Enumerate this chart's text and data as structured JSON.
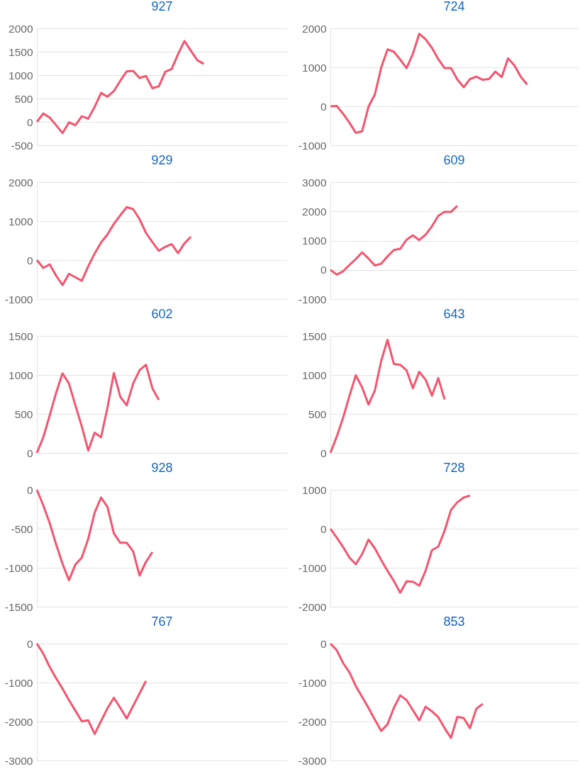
{
  "chart_data": [
    {
      "type": "line",
      "title": "927",
      "categories": [
        null,
        null,
        null,
        null,
        null,
        null,
        null,
        null,
        null,
        null,
        null,
        null,
        null,
        null,
        null,
        null,
        null,
        null,
        null,
        null,
        null,
        null,
        null,
        null,
        null,
        null,
        null,
        null,
        null,
        null,
        null,
        null,
        null,
        null,
        null,
        null,
        null,
        null,
        null,
        null
      ],
      "series": [
        {
          "color": "#f4546f",
          "values": [
            0,
            180,
            90,
            -70,
            -240,
            -10,
            -70,
            120,
            70,
            320,
            620,
            540,
            660,
            880,
            1080,
            1090,
            940,
            980,
            720,
            760,
            1070,
            1130,
            1450,
            1730,
            1520,
            1320,
            1240,
            null,
            null,
            null,
            null,
            null,
            null,
            null,
            null,
            null,
            null,
            null,
            null,
            null
          ]
        }
      ],
      "ylim": [
        -500,
        2000
      ],
      "yticks": [
        -500,
        0,
        500,
        1000,
        1500,
        2000
      ],
      "grid": "y",
      "tick_labels": "y"
    },
    {
      "type": "line",
      "title": "724",
      "categories": [
        null,
        null,
        null,
        null,
        null,
        null,
        null,
        null,
        null,
        null,
        null,
        null,
        null,
        null,
        null,
        null,
        null,
        null,
        null,
        null,
        null,
        null,
        null,
        null,
        null,
        null,
        null,
        null,
        null,
        null,
        null,
        null,
        null,
        null,
        null,
        null,
        null,
        null,
        null,
        null
      ],
      "series": [
        {
          "color": "#f4546f",
          "values": [
            0,
            10,
            -190,
            -420,
            -680,
            -640,
            -10,
            300,
            990,
            1460,
            1400,
            1200,
            980,
            1350,
            1860,
            1720,
            1500,
            1210,
            980,
            980,
            690,
            490,
            700,
            760,
            680,
            700,
            890,
            750,
            1230,
            1050,
            760,
            560,
            null,
            null,
            null,
            null,
            null,
            null,
            null,
            null
          ]
        }
      ],
      "ylim": [
        -1000,
        2000
      ],
      "yticks": [
        -1000,
        0,
        1000,
        2000
      ],
      "grid": "y",
      "tick_labels": "y"
    },
    {
      "type": "line",
      "title": "929",
      "categories": [
        null,
        null,
        null,
        null,
        null,
        null,
        null,
        null,
        null,
        null,
        null,
        null,
        null,
        null,
        null,
        null,
        null,
        null,
        null,
        null,
        null,
        null,
        null,
        null,
        null,
        null,
        null,
        null,
        null,
        null,
        null,
        null,
        null,
        null,
        null,
        null,
        null,
        null,
        null,
        null
      ],
      "series": [
        {
          "color": "#f4546f",
          "values": [
            0,
            -200,
            -110,
            -400,
            -640,
            -350,
            -440,
            -530,
            -160,
            170,
            450,
            660,
            930,
            1150,
            1360,
            1310,
            1050,
            700,
            460,
            240,
            340,
            410,
            180,
            430,
            600,
            null,
            null,
            null,
            null,
            null,
            null,
            null,
            null,
            null,
            null,
            null,
            null,
            null,
            null,
            null
          ]
        }
      ],
      "ylim": [
        -1000,
        2000
      ],
      "yticks": [
        -1000,
        0,
        1000,
        2000
      ],
      "grid": "y",
      "tick_labels": "y"
    },
    {
      "type": "line",
      "title": "609",
      "categories": [
        null,
        null,
        null,
        null,
        null,
        null,
        null,
        null,
        null,
        null,
        null,
        null,
        null,
        null,
        null,
        null,
        null,
        null,
        null,
        null,
        null,
        null,
        null,
        null,
        null,
        null,
        null,
        null,
        null,
        null,
        null,
        null,
        null,
        null,
        null,
        null,
        null,
        null,
        null,
        null
      ],
      "series": [
        {
          "color": "#f4546f",
          "values": [
            0,
            -160,
            -50,
            170,
            370,
            600,
            390,
            150,
            210,
            460,
            680,
            720,
            1030,
            1180,
            1020,
            1205,
            1490,
            1850,
            1990,
            1980,
            2190,
            null,
            null,
            null,
            null,
            null,
            null,
            null,
            null,
            null,
            null,
            null,
            null,
            null,
            null,
            null,
            null,
            null,
            null,
            null
          ]
        }
      ],
      "ylim": [
        -1000,
        3000
      ],
      "yticks": [
        -1000,
        0,
        1000,
        2000,
        3000
      ],
      "grid": "y",
      "tick_labels": "y"
    },
    {
      "type": "line",
      "title": "602",
      "categories": [
        null,
        null,
        null,
        null,
        null,
        null,
        null,
        null,
        null,
        null,
        null,
        null,
        null,
        null,
        null,
        null,
        null,
        null,
        null,
        null,
        null,
        null,
        null,
        null,
        null,
        null,
        null,
        null,
        null,
        null,
        null,
        null,
        null,
        null,
        null,
        null,
        null,
        null,
        null,
        null
      ],
      "series": [
        {
          "color": "#f4546f",
          "values": [
            0,
            200,
            480,
            770,
            1020,
            890,
            610,
            340,
            30,
            260,
            200,
            580,
            1025,
            720,
            610,
            890,
            1060,
            1130,
            830,
            680,
            null,
            null,
            null,
            null,
            null,
            null,
            null,
            null,
            null,
            null,
            null,
            null,
            null,
            null,
            null,
            null,
            null,
            null,
            null,
            null
          ]
        }
      ],
      "ylim": [
        0,
        1500
      ],
      "yticks": [
        0,
        500,
        1000,
        1500
      ],
      "grid": "y",
      "tick_labels": "y"
    },
    {
      "type": "line",
      "title": "643",
      "categories": [
        null,
        null,
        null,
        null,
        null,
        null,
        null,
        null,
        null,
        null,
        null,
        null,
        null,
        null,
        null,
        null,
        null,
        null,
        null,
        null,
        null,
        null,
        null,
        null,
        null,
        null,
        null,
        null,
        null,
        null,
        null,
        null,
        null,
        null,
        null,
        null,
        null,
        null,
        null,
        null
      ],
      "series": [
        {
          "color": "#f4546f",
          "values": [
            0,
            210,
            450,
            730,
            995,
            840,
            620,
            800,
            1180,
            1450,
            1140,
            1130,
            1060,
            830,
            1040,
            940,
            735,
            960,
            685,
            null,
            null,
            null,
            null,
            null,
            null,
            null,
            null,
            null,
            null,
            null,
            null,
            null,
            null,
            null,
            null,
            null,
            null,
            null,
            null,
            null
          ]
        }
      ],
      "ylim": [
        0,
        1500
      ],
      "yticks": [
        0,
        500,
        1000,
        1500
      ],
      "grid": "y",
      "tick_labels": "y"
    },
    {
      "type": "line",
      "title": "928",
      "categories": [
        null,
        null,
        null,
        null,
        null,
        null,
        null,
        null,
        null,
        null,
        null,
        null,
        null,
        null,
        null,
        null,
        null,
        null,
        null,
        null,
        null,
        null,
        null,
        null,
        null,
        null,
        null,
        null,
        null,
        null,
        null,
        null,
        null,
        null,
        null,
        null,
        null,
        null,
        null,
        null
      ],
      "series": [
        {
          "color": "#f4546f",
          "values": [
            0,
            -200,
            -430,
            -700,
            -950,
            -1160,
            -960,
            -870,
            -630,
            -295,
            -100,
            -220,
            -560,
            -680,
            -680,
            -790,
            -1100,
            -925,
            -800,
            null,
            null,
            null,
            null,
            null,
            null,
            null,
            null,
            null,
            null,
            null,
            null,
            null,
            null,
            null,
            null,
            null,
            null,
            null,
            null,
            null
          ]
        }
      ],
      "ylim": [
        -1500,
        0
      ],
      "yticks": [
        -1500,
        -1000,
        -500,
        0
      ],
      "grid": "y",
      "tick_labels": "y"
    },
    {
      "type": "line",
      "title": "728",
      "categories": [
        null,
        null,
        null,
        null,
        null,
        null,
        null,
        null,
        null,
        null,
        null,
        null,
        null,
        null,
        null,
        null,
        null,
        null,
        null,
        null,
        null,
        null,
        null,
        null,
        null,
        null,
        null,
        null,
        null,
        null,
        null,
        null,
        null,
        null,
        null,
        null,
        null,
        null,
        null,
        null
      ],
      "series": [
        {
          "color": "#f4546f",
          "values": [
            0,
            -230,
            -470,
            -740,
            -910,
            -650,
            -280,
            -500,
            -800,
            -1080,
            -1340,
            -1640,
            -1350,
            -1360,
            -1460,
            -1080,
            -550,
            -460,
            -50,
            480,
            680,
            800,
            850,
            null,
            null,
            null,
            null,
            null,
            null,
            null,
            null,
            null,
            null,
            null,
            null,
            null,
            null,
            null,
            null,
            null
          ]
        }
      ],
      "ylim": [
        -2000,
        1000
      ],
      "yticks": [
        -2000,
        -1000,
        0,
        1000
      ],
      "grid": "y",
      "tick_labels": "y"
    },
    {
      "type": "line",
      "title": "767",
      "categories": [
        null,
        null,
        null,
        null,
        null,
        null,
        null,
        null,
        null,
        null,
        null,
        null,
        null,
        null,
        null,
        null,
        null,
        null,
        null,
        null,
        null,
        null,
        null,
        null,
        null,
        null,
        null,
        null,
        null,
        null,
        null,
        null,
        null,
        null,
        null,
        null,
        null,
        null,
        null,
        null
      ],
      "series": [
        {
          "color": "#f4546f",
          "values": [
            0,
            -260,
            -600,
            -890,
            -1160,
            -1450,
            -1720,
            -1995,
            -1970,
            -2320,
            -1990,
            -1660,
            -1390,
            -1650,
            -1920,
            -1600,
            -1280,
            -960,
            null,
            null,
            null,
            null,
            null,
            null,
            null,
            null,
            null,
            null,
            null,
            null,
            null,
            null,
            null,
            null,
            null,
            null,
            null,
            null,
            null,
            null
          ]
        }
      ],
      "ylim": [
        -3000,
        0
      ],
      "yticks": [
        -3000,
        -2000,
        -1000,
        0
      ],
      "grid": "y",
      "tick_labels": "y"
    },
    {
      "type": "line",
      "title": "853",
      "categories": [
        null,
        null,
        null,
        null,
        null,
        null,
        null,
        null,
        null,
        null,
        null,
        null,
        null,
        null,
        null,
        null,
        null,
        null,
        null,
        null,
        null,
        null,
        null,
        null,
        null,
        null,
        null,
        null,
        null,
        null,
        null,
        null,
        null,
        null,
        null,
        null,
        null,
        null,
        null,
        null
      ],
      "series": [
        {
          "color": "#f4546f",
          "values": [
            0,
            -170,
            -500,
            -740,
            -1090,
            -1370,
            -1650,
            -1950,
            -2240,
            -2070,
            -1650,
            -1330,
            -1450,
            -1710,
            -1970,
            -1620,
            -1740,
            -1890,
            -2170,
            -2420,
            -1880,
            -1910,
            -2170,
            -1670,
            -1550,
            null,
            null,
            null,
            null,
            null,
            null,
            null,
            null,
            null,
            null,
            null,
            null,
            null,
            null,
            null
          ]
        }
      ],
      "ylim": [
        -3000,
        0
      ],
      "yticks": [
        -3000,
        -2000,
        -1000,
        0
      ],
      "grid": "y",
      "tick_labels": "y"
    }
  ]
}
